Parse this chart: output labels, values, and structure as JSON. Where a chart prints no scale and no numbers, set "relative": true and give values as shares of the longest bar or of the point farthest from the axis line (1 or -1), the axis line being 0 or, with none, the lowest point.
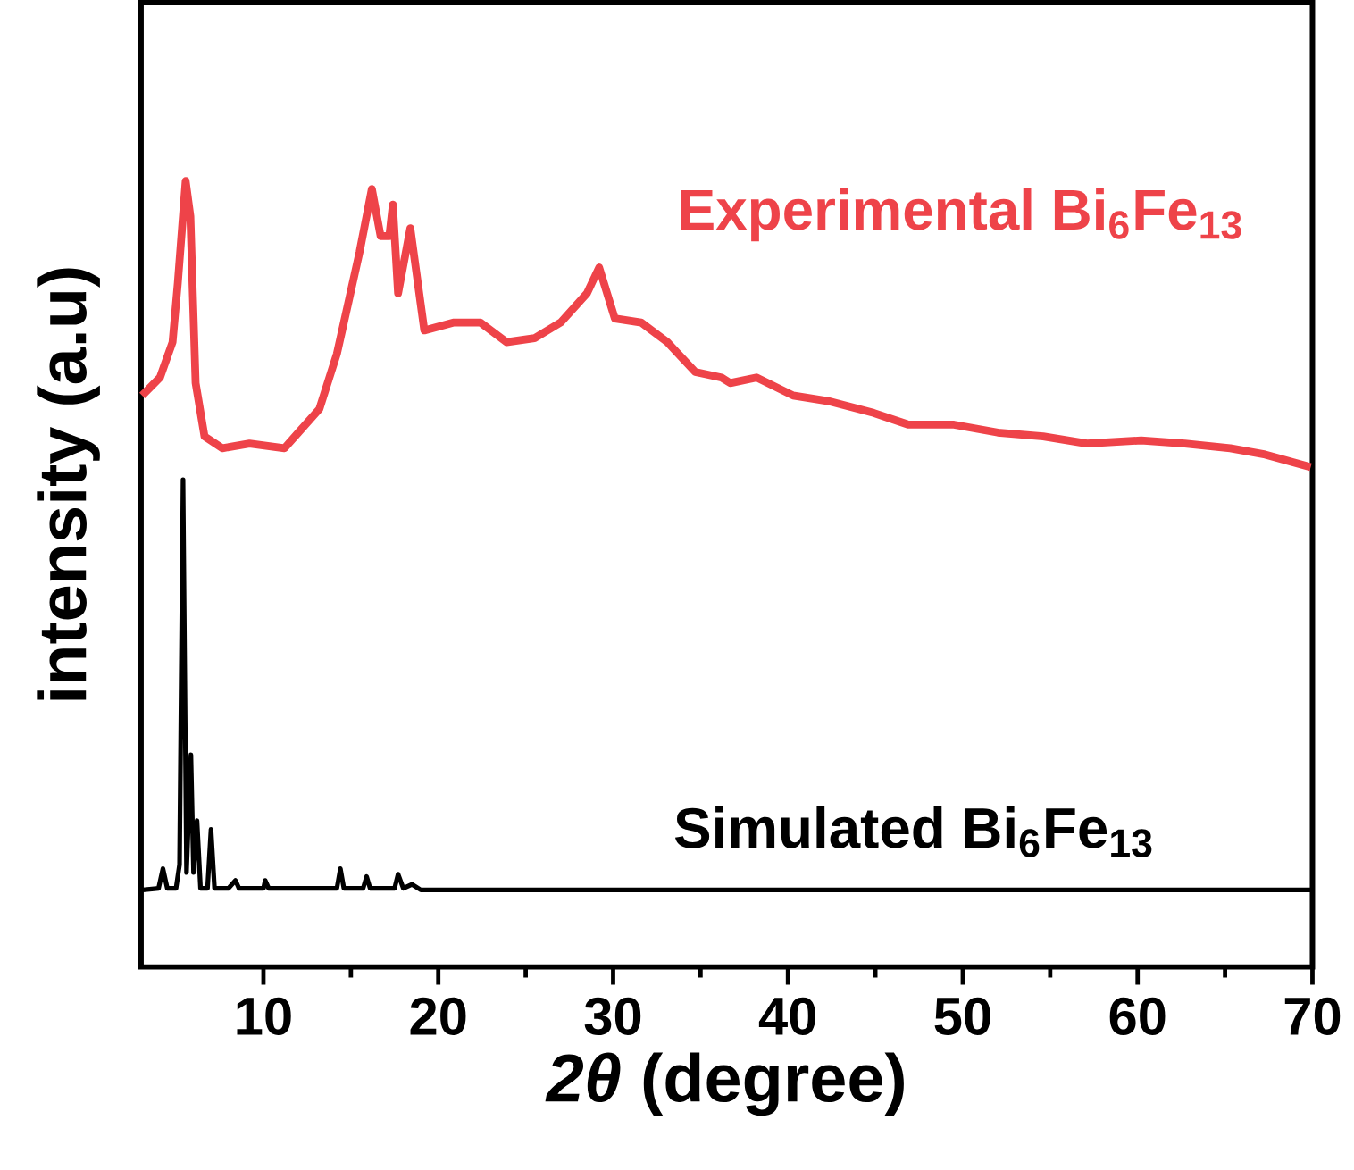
{
  "chart_data": {
    "type": "line",
    "relative": true,
    "xlabel": "*2θ* (degree)",
    "ylabel": "intensity (a.u)",
    "xlim": [
      3,
      70
    ],
    "xticks": [
      10,
      20,
      30,
      40,
      50,
      60,
      70
    ],
    "tick_labels": "x",
    "legend": false,
    "grid": false,
    "marker": "none",
    "line_style": "solid",
    "series": [
      {
        "name": "Experimental Bi$_{6}$Fe$_{13}$",
        "color": "#ee4349",
        "x": [
          3.06,
          4.08,
          4.8,
          5.1,
          5.55,
          5.82,
          6.12,
          6.63,
          7.65,
          9.2,
          11.2,
          12.0,
          13.2,
          14.2,
          14.9,
          15.5,
          16.2,
          16.7,
          17.2,
          17.4,
          17.7,
          18.4,
          19.2,
          20.9,
          22.4,
          23.9,
          25.5,
          27.0,
          28.5,
          29.2,
          30.1,
          31.6,
          33.1,
          34.7,
          36.2,
          36.7,
          38.2,
          40.3,
          42.3,
          44.9,
          46.9,
          49.5,
          52.0,
          54.6,
          57.1,
          60.2,
          62.7,
          65.3,
          67.3,
          69.9
        ],
        "values": [
          0.727,
          0.75,
          0.795,
          0.87,
          1.0,
          0.955,
          0.743,
          0.675,
          0.66,
          0.666,
          0.66,
          0.68,
          0.71,
          0.78,
          0.85,
          0.91,
          0.99,
          0.93,
          0.93,
          0.97,
          0.857,
          0.94,
          0.81,
          0.82,
          0.82,
          0.795,
          0.8,
          0.82,
          0.857,
          0.89,
          0.825,
          0.82,
          0.795,
          0.757,
          0.75,
          0.743,
          0.75,
          0.727,
          0.72,
          0.705,
          0.69,
          0.69,
          0.68,
          0.675,
          0.666,
          0.67,
          0.666,
          0.66,
          0.652,
          0.636
        ]
      },
      {
        "name": "Simulated Bi$_{6}$Fe$_{13}$",
        "color": "#000000",
        "x": [
          3.1,
          4.0,
          4.25,
          4.5,
          5.0,
          5.2,
          5.4,
          5.6,
          5.85,
          6.0,
          6.2,
          6.4,
          6.8,
          7.0,
          7.2,
          8.0,
          8.4,
          8.6,
          10.0,
          10.1,
          10.3,
          14.2,
          14.4,
          14.6,
          15.7,
          15.9,
          16.1,
          17.5,
          17.7,
          18.0,
          18.5,
          19.0,
          70.0
        ],
        "values": [
          0.098,
          0.1,
          0.125,
          0.1,
          0.1,
          0.13,
          0.62,
          0.12,
          0.27,
          0.12,
          0.186,
          0.1,
          0.1,
          0.175,
          0.1,
          0.1,
          0.11,
          0.1,
          0.1,
          0.11,
          0.1,
          0.1,
          0.125,
          0.1,
          0.1,
          0.115,
          0.1,
          0.1,
          0.118,
          0.1,
          0.105,
          0.098,
          0.098
        ]
      }
    ]
  }
}
